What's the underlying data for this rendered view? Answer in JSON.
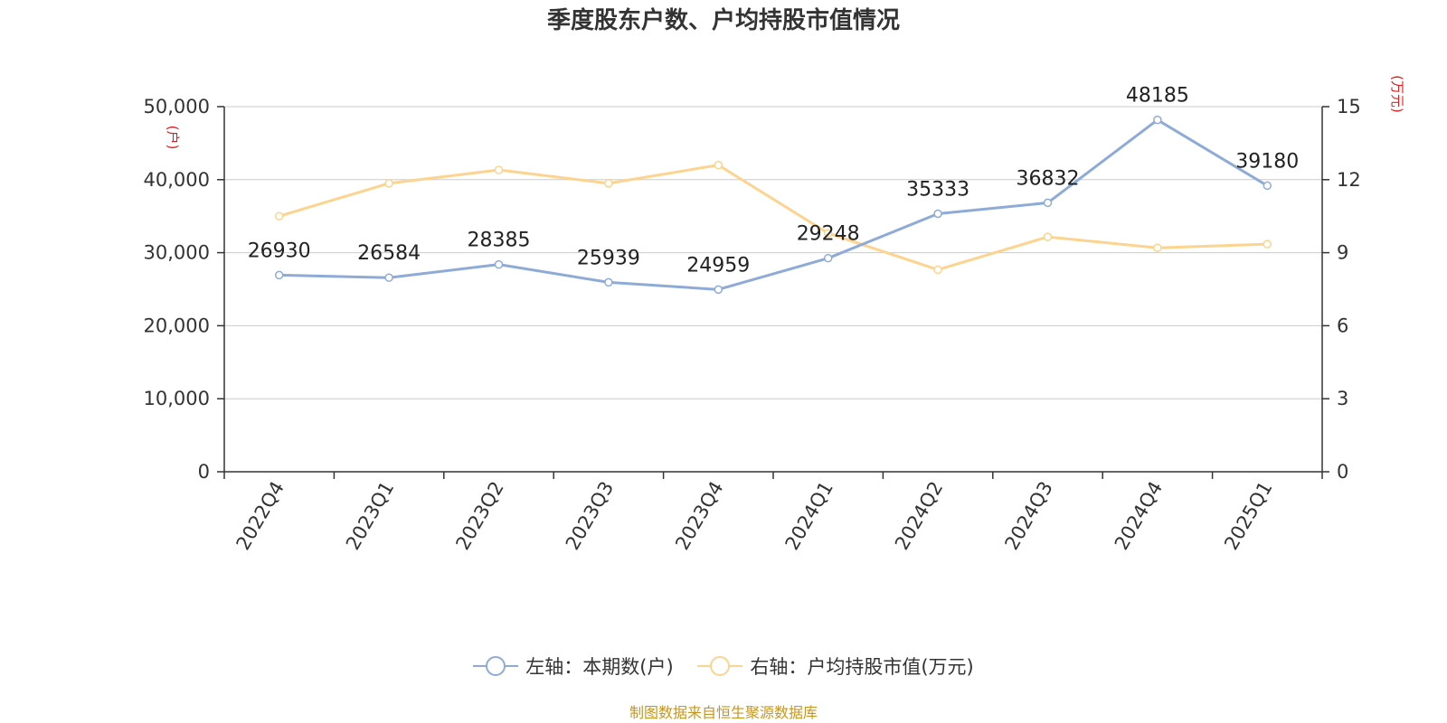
{
  "title": "季度股东户数、户均持股市值情况",
  "source_note": "制图数据来自恒生聚源数据库",
  "colors": {
    "left_series": "#8eabd8",
    "right_series": "#fcd48f",
    "axis_unit": "#e02020",
    "grid": "#cccccc",
    "axis": "#333333",
    "source": "#c8961e"
  },
  "chart_data": {
    "type": "line",
    "title": "季度股东户数、户均持股市值情况",
    "categories": [
      "2022Q4",
      "2023Q1",
      "2023Q2",
      "2023Q3",
      "2023Q4",
      "2024Q1",
      "2024Q2",
      "2024Q3",
      "2024Q4",
      "2025Q1"
    ],
    "left_axis": {
      "unit_label": "(户)",
      "range": [
        0,
        50000
      ],
      "ticks": [
        0,
        10000,
        20000,
        30000,
        40000,
        50000
      ],
      "tick_labels": [
        "0",
        "10,000",
        "20,000",
        "30,000",
        "40,000",
        "50,000"
      ]
    },
    "right_axis": {
      "unit_label": "(万元)",
      "range": [
        0,
        15
      ],
      "ticks": [
        0,
        3,
        6,
        9,
        12,
        15
      ],
      "tick_labels": [
        "0",
        "3",
        "6",
        "9",
        "12",
        "15"
      ]
    },
    "grid": true,
    "legend_position": "bottom",
    "series": [
      {
        "name": "左轴：本期数(户)",
        "axis": "left",
        "values": [
          26930,
          26584,
          28385,
          25939,
          24959,
          29248,
          35333,
          36832,
          48185,
          39180
        ],
        "data_labels": [
          "26930",
          "26584",
          "28385",
          "25939",
          "24959",
          "29248",
          "35333",
          "36832",
          "48185",
          "39180"
        ]
      },
      {
        "name": "右轴：户均持股市值(万元)",
        "axis": "right",
        "values": [
          10.5,
          11.85,
          12.4,
          11.85,
          12.6,
          9.8,
          8.3,
          9.65,
          9.2,
          9.35
        ]
      }
    ]
  }
}
